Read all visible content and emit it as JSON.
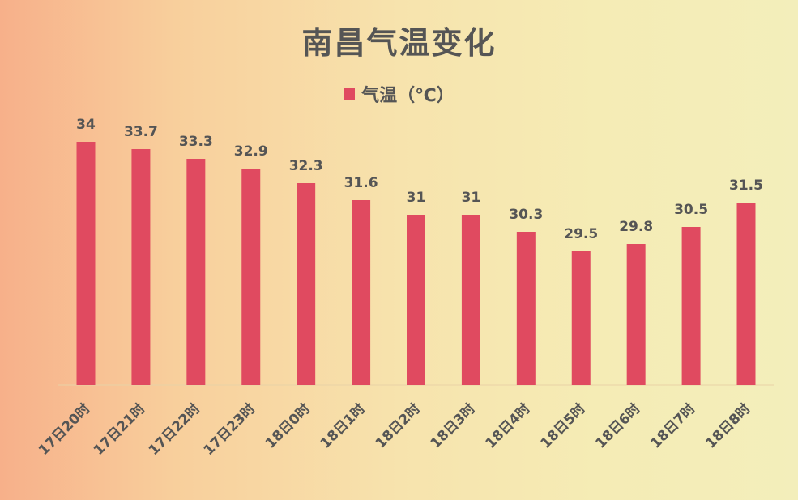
{
  "chart_data": {
    "type": "bar",
    "title": "南昌气温变化",
    "categories": [
      "17日20时",
      "17日21时",
      "17日22时",
      "17日23时",
      "18日0时",
      "18日1时",
      "18日2时",
      "18日3时",
      "18日4时",
      "18日5时",
      "18日6时",
      "18日7时",
      "18日8时"
    ],
    "series": [
      {
        "name": "气温（℃）",
        "values": [
          34,
          33.7,
          33.3,
          32.9,
          32.3,
          31.6,
          31,
          31,
          30.3,
          29.5,
          29.8,
          30.5,
          31.5
        ]
      }
    ],
    "data_labels": [
      "34",
      "33.7",
      "33.3",
      "32.9",
      "32.3",
      "31.6",
      "31",
      "31",
      "30.3",
      "29.5",
      "29.8",
      "30.5",
      "31.5"
    ],
    "ylim": [
      24,
      35
    ],
    "grid": false,
    "legend_position": "top-center",
    "bar_color": "#e04a60"
  }
}
